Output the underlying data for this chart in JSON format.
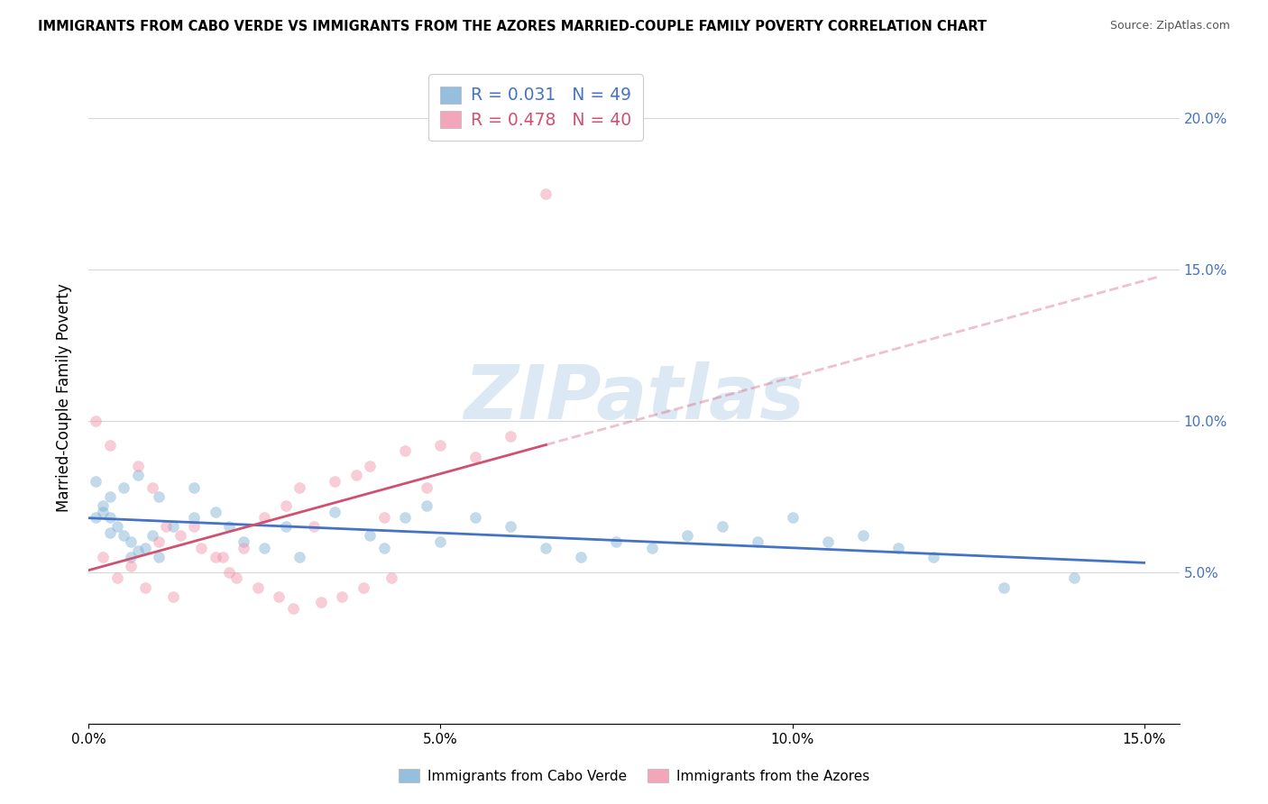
{
  "title": "IMMIGRANTS FROM CABO VERDE VS IMMIGRANTS FROM THE AZORES MARRIED-COUPLE FAMILY POVERTY CORRELATION CHART",
  "source": "Source: ZipAtlas.com",
  "ylabel_label": "Married-Couple Family Poverty",
  "xlim": [
    0,
    0.155
  ],
  "ylim": [
    0,
    0.215
  ],
  "cabo_verde_scatter": [
    [
      0.005,
      0.062
    ],
    [
      0.008,
      0.058
    ],
    [
      0.01,
      0.055
    ],
    [
      0.003,
      0.068
    ],
    [
      0.006,
      0.06
    ],
    [
      0.007,
      0.057
    ],
    [
      0.009,
      0.062
    ],
    [
      0.004,
      0.065
    ],
    [
      0.002,
      0.072
    ],
    [
      0.001,
      0.068
    ],
    [
      0.003,
      0.063
    ],
    [
      0.006,
      0.055
    ],
    [
      0.012,
      0.065
    ],
    [
      0.015,
      0.068
    ],
    [
      0.018,
      0.07
    ],
    [
      0.02,
      0.065
    ],
    [
      0.022,
      0.06
    ],
    [
      0.025,
      0.058
    ],
    [
      0.028,
      0.065
    ],
    [
      0.03,
      0.055
    ],
    [
      0.035,
      0.07
    ],
    [
      0.04,
      0.062
    ],
    [
      0.042,
      0.058
    ],
    [
      0.045,
      0.068
    ],
    [
      0.048,
      0.072
    ],
    [
      0.05,
      0.06
    ],
    [
      0.055,
      0.068
    ],
    [
      0.06,
      0.065
    ],
    [
      0.065,
      0.058
    ],
    [
      0.07,
      0.055
    ],
    [
      0.075,
      0.06
    ],
    [
      0.08,
      0.058
    ],
    [
      0.085,
      0.062
    ],
    [
      0.09,
      0.065
    ],
    [
      0.095,
      0.06
    ],
    [
      0.1,
      0.068
    ],
    [
      0.105,
      0.06
    ],
    [
      0.11,
      0.062
    ],
    [
      0.115,
      0.058
    ],
    [
      0.12,
      0.055
    ],
    [
      0.001,
      0.08
    ],
    [
      0.003,
      0.075
    ],
    [
      0.005,
      0.078
    ],
    [
      0.007,
      0.082
    ],
    [
      0.002,
      0.07
    ],
    [
      0.01,
      0.075
    ],
    [
      0.015,
      0.078
    ],
    [
      0.13,
      0.045
    ],
    [
      0.14,
      0.048
    ]
  ],
  "azores_scatter": [
    [
      0.002,
      0.055
    ],
    [
      0.004,
      0.048
    ],
    [
      0.006,
      0.052
    ],
    [
      0.008,
      0.045
    ],
    [
      0.01,
      0.06
    ],
    [
      0.012,
      0.042
    ],
    [
      0.015,
      0.065
    ],
    [
      0.018,
      0.055
    ],
    [
      0.02,
      0.05
    ],
    [
      0.022,
      0.058
    ],
    [
      0.025,
      0.068
    ],
    [
      0.028,
      0.072
    ],
    [
      0.03,
      0.078
    ],
    [
      0.032,
      0.065
    ],
    [
      0.035,
      0.08
    ],
    [
      0.038,
      0.082
    ],
    [
      0.04,
      0.085
    ],
    [
      0.042,
      0.068
    ],
    [
      0.045,
      0.09
    ],
    [
      0.048,
      0.078
    ],
    [
      0.05,
      0.092
    ],
    [
      0.055,
      0.088
    ],
    [
      0.06,
      0.095
    ],
    [
      0.065,
      0.175
    ],
    [
      0.001,
      0.1
    ],
    [
      0.003,
      0.092
    ],
    [
      0.007,
      0.085
    ],
    [
      0.009,
      0.078
    ],
    [
      0.011,
      0.065
    ],
    [
      0.013,
      0.062
    ],
    [
      0.016,
      0.058
    ],
    [
      0.019,
      0.055
    ],
    [
      0.021,
      0.048
    ],
    [
      0.024,
      0.045
    ],
    [
      0.027,
      0.042
    ],
    [
      0.029,
      0.038
    ],
    [
      0.033,
      0.04
    ],
    [
      0.036,
      0.042
    ],
    [
      0.039,
      0.045
    ],
    [
      0.043,
      0.048
    ]
  ],
  "cabo_verde_color": "#7bafd4",
  "azores_color": "#f090a8",
  "cabo_verde_line_color": "#4472c4",
  "azores_line_color": "#d05070",
  "watermark": "ZIPatlas",
  "grid_color": "#d8d8d8",
  "scatter_size": 75,
  "scatter_alpha": 0.45,
  "legend_r_cabo": "R = 0.031",
  "legend_n_cabo": "N = 49",
  "legend_r_azores": "R = 0.478",
  "legend_n_azores": "N = 40",
  "bottom_legend": [
    "Immigrants from Cabo Verde",
    "Immigrants from the Azores"
  ],
  "ytick_vals": [
    0.05,
    0.1,
    0.15,
    0.2
  ],
  "xtick_vals": [
    0.0,
    0.05,
    0.1,
    0.15
  ]
}
